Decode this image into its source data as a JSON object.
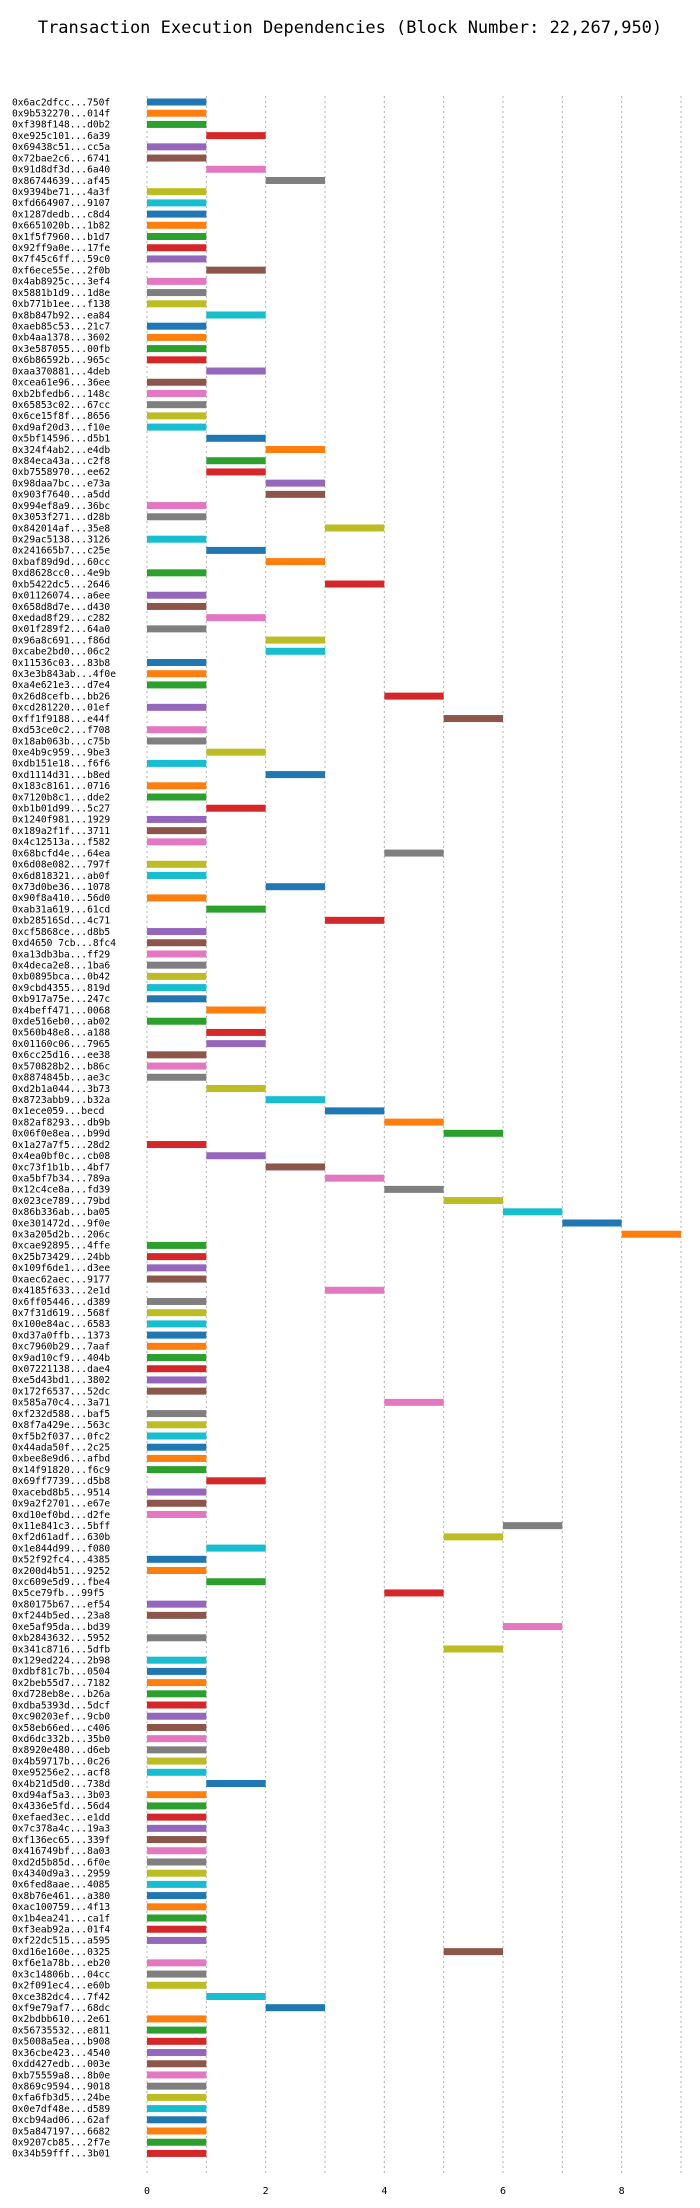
{
  "chart_data": {
    "type": "bar",
    "orientation": "horizontal",
    "title": "Transaction Execution Dependencies (Block Number: 22,267,950)",
    "xlabel": "",
    "ylabel": "",
    "xlim": [
      0,
      9
    ],
    "xticks": [
      0,
      2,
      4,
      6,
      8
    ],
    "grid": true,
    "categories": [
      "0x6ac2dfcc...750f",
      "0x9b532270...014f",
      "0xf398f148...d0b2",
      "0xe925c101...6a39",
      "0x69438c51...cc5a",
      "0x72bae2c6...6741",
      "0x91d8df3d...6a40",
      "0x86744639...af45",
      "0x9394be71...4a3f",
      "0xfd664907...9107",
      "0x1287dedb...c8d4",
      "0x6651020b...1b82",
      "0x1f5f7960...b1d7",
      "0x92ff9a0e...17fe",
      "0x7f45c6ff...59c0",
      "0xf6ece55e...2f0b",
      "0x4ab8925c...3ef4",
      "0x5881b1d9...1d8e",
      "0xb771b1ee...f138",
      "0x8b847b92...ea84",
      "0xaeb85c53...21c7",
      "0xb4aa1378...3602",
      "0x3e587055...00fb",
      "0x6b86592b...965c",
      "0xaa370881...4deb",
      "0xcea61e96...36ee",
      "0xb2bfedb6...148c",
      "0x65853c02...67cc",
      "0x6ce15f8f...8656",
      "0xd9af20d3...f10e",
      "0x5bf14596...d5b1",
      "0x324f4ab2...e4db",
      "0x84eca43a...c2f8",
      "0xb7558970...ee62",
      "0x98daa7bc...e73a",
      "0x903f7640...a5dd",
      "0x994ef8a9...36bc",
      "0x3053f271...d28b",
      "0x842014af...35e8",
      "0x29ac5138...3126",
      "0x241665b7...c25e",
      "0xbaf89d9d...60cc",
      "0xd8628cc0...4e9b",
      "0xb5422dc5...2646",
      "0x01126074...a6ee",
      "0x658d8d7e...d430",
      "0xedad8f29...c282",
      "0x01f289f2...64a0",
      "0x96a8c691...f86d",
      "0xcabe2bd0...06c2",
      "0x11536c03...83b8",
      "0x3e3b843ab...4f0e",
      "0xa4e621e3...d7e4",
      "0x26d8cefb...bb26",
      "0xcd281220...01ef",
      "0xff1f9188...e44f",
      "0xd53ce0c2...f708",
      "0x18ab063b...c75b",
      "0xe4b9c959...9be3",
      "0xdb151e18...f6f6",
      "0xd1114d31...b8ed",
      "0x183c8161...0716",
      "0x7120b8c1...dde2",
      "0xb1b01d99...5c27",
      "0x1240f981...1929",
      "0x189a2f1f...3711",
      "0x4c12513a...f582",
      "0x68bcfd4e...64ea",
      "0x6d08e082...797f",
      "0x6d818321...ab0f",
      "0x73d0be36...1078",
      "0x90f8a410...56d0",
      "0xab31a619...61cd",
      "0xb28516Sd...4c71",
      "0xcf5868ce...d8b5",
      "0xd4650 7cb...8fc4",
      "0xa13db3ba...ff29",
      "0x4deca2e8...1ba6",
      "0xb0895bca...0b42",
      "0x9cbd4355...819d",
      "0xb917a75e...247c",
      "0x4beff471...0068",
      "0xde516eb0...ab02",
      "0x560b48e8...a188",
      "0x01160c06...7965",
      "0x6cc25d16...ee38",
      "0x570828b2...b86c",
      "0x8874845b...ae3c",
      "0xd2b1a044...3b73",
      "0x8723abb9...b32a",
      "0x1ece059...becd",
      "0x82af8293...db9b",
      "0x06f0e8ea...b99d",
      "0x1a27a7f5...28d2",
      "0x4ea0bf0c...cb08",
      "0xc73f1b1b...4bf7",
      "0xa5bf7b34...789a",
      "0x12c4ce8a...fd39",
      "0x023ce789...79bd",
      "0x86b336ab...ba05",
      "0xe301472d...9f0e",
      "0x3a205d2b...206c",
      "0xcae92895...4ffe",
      "0x25b73429...24bb",
      "0x109f6de1...d3ee",
      "0xaec62aec...9177",
      "0x4185f633...2e1d",
      "0x6ff05446...d389",
      "0x7f31d619...568f",
      "0x100e84ac...6583",
      "0xd37a0ffb...1373",
      "0xc7960b29...7aaf",
      "0x9ad10cf9...404b",
      "0x07221138...dae4",
      "0xe5d43bd1...3802",
      "0x172f6537...52dc",
      "0x585a70c4...3a71",
      "0xf232d588...baf5",
      "0x8f7a429e...563c",
      "0xf5b2f037...0fc2",
      "0x44ada50f...2c25",
      "0xbee8e9d6...afbd",
      "0x14f91820...f6c9",
      "0x69ff7739...d5b8",
      "0xacebd8b5...9514",
      "0x9a2f2701...e67e",
      "0xd10ef0bd...d2fe",
      "0x11e841c3...5bff",
      "0xf2d61adf...630b",
      "0x1e844d99...f080",
      "0x52f92fc4...4385",
      "0x200d4b51...9252",
      "0xc609e5d9...fbe4",
      "0x5ce79fb...99f5",
      "0x80175b67...ef54",
      "0xf244b5ed...23a8",
      "0xe5af95da...bd39",
      "0xb2843632...5952",
      "0x341c8716...5dfb",
      "0x129ed224...2b98",
      "0xdbf81c7b...0504",
      "0x2beb55d7...7182",
      "0xd728eb8e...b26a",
      "0xdba5393d...5dcf",
      "0xc90203ef...9cb0",
      "0x58eb66ed...c406",
      "0xd6dc332b...35b0",
      "0x8920e480...d6eb",
      "0x4b59717b...0c26",
      "0xe95256e2...acf8",
      "0x4b21d5d0...738d",
      "0xd94af5a3...3b03",
      "0x4336e5fd...56d4",
      "0xefaed3ec...e1dd",
      "0x7c378a4c...19a3",
      "0xf136ec65...339f",
      "0x416749bf...8a03",
      "0xd2d5b85d...6f0e",
      "0x4340d9a3...2959",
      "0x6fed8aae...4085",
      "0x8b76e461...a380",
      "0xac100759...4f13",
      "0x1b4ea241...ca1f",
      "0xf3eab92a...01f4",
      "0xf22dc515...a595",
      "0xd16e160e...0325",
      "0xf6e1a78b...eb20",
      "0x3c14806b...04cc",
      "0x2f091ec4...e60b",
      "0xce382dc4...7f42",
      "0xf9e79af7...68dc",
      "0x2bdbb610...2e61",
      "0x56735532...e811",
      "0x5008a5ea...b908",
      "0x36cbe423...4540",
      "0xdd427edb...003e",
      "0xb75559a8...8b0e",
      "0x869c9594...9018",
      "0xfa6fb3d5...24be",
      "0x0e7df48e...d589",
      "0xcb94ad06...62af",
      "0x5a847197...6682",
      "0x9207cb85...2f7e",
      "0x34b59fff...3b01"
    ],
    "starts": [
      0,
      0,
      0,
      1,
      0,
      0,
      1,
      2,
      0,
      0,
      0,
      0,
      0,
      0,
      0,
      1,
      0,
      0,
      0,
      1,
      0,
      0,
      0,
      0,
      1,
      0,
      0,
      0,
      0,
      0,
      1,
      2,
      1,
      1,
      2,
      2,
      0,
      0,
      3,
      0,
      1,
      2,
      0,
      3,
      0,
      0,
      1,
      0,
      2,
      2,
      0,
      0,
      0,
      4,
      0,
      5,
      0,
      0,
      1,
      0,
      2,
      0,
      0,
      1,
      0,
      0,
      0,
      4,
      0,
      0,
      2,
      0,
      1,
      3,
      0,
      0,
      0,
      0,
      0,
      0,
      0,
      1,
      0,
      1,
      1,
      0,
      0,
      0,
      1,
      2,
      3,
      4,
      5,
      0,
      1,
      2,
      3,
      4,
      5,
      6,
      7,
      8,
      0,
      0,
      0,
      0,
      3,
      0,
      0,
      0,
      0,
      0,
      0,
      0,
      0,
      0,
      4,
      0,
      0,
      0,
      0,
      0,
      0,
      1,
      0,
      0,
      0,
      6,
      5,
      1,
      0,
      0,
      1,
      4,
      0,
      0,
      6,
      0,
      5,
      0,
      0,
      0,
      0,
      0,
      0,
      0,
      0,
      0,
      0,
      0,
      1,
      0,
      0,
      0,
      0,
      0,
      0,
      0,
      0,
      0,
      0,
      0,
      0,
      0,
      0,
      5,
      0,
      0,
      0,
      1,
      2,
      0,
      0,
      0,
      0,
      0,
      0,
      0,
      0,
      0,
      0,
      0,
      0,
      0
    ],
    "durations": "all 1",
    "colors": [
      "#1f77b4",
      "#ff7f0e",
      "#2ca02c",
      "#d62728",
      "#9467bd",
      "#8c564b",
      "#e377c2",
      "#7f7f7f",
      "#bcbd22",
      "#17becf"
    ]
  }
}
